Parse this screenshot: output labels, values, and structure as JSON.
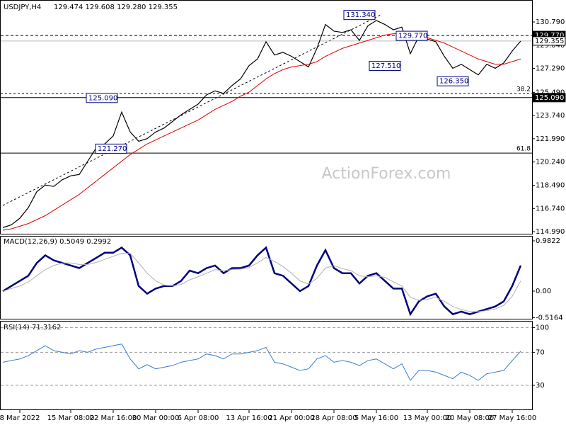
{
  "chart_data": [
    {
      "type": "line",
      "title": "USDJPY,H4",
      "subtitle": "129.474 129.608 129.280 129.355",
      "watermark": "ActionForex.com",
      "categories": [
        null,
        null,
        "8 Mar 2022",
        null,
        null,
        null,
        null,
        null,
        "15 Mar 08:00",
        null,
        null,
        null,
        null,
        "22 Mar 16:00",
        null,
        null,
        null,
        null,
        "30 Mar 00:00",
        null,
        null,
        null,
        null,
        "6 Apr 08:00",
        null,
        null,
        null,
        null,
        null,
        "13 Apr 16:00",
        null,
        null,
        null,
        null,
        "21 Apr 00:00",
        null,
        null,
        null,
        null,
        "28 Apr 08:00",
        null,
        null,
        null,
        null,
        "5 May 16:00",
        null,
        null,
        null,
        null,
        null,
        "13 May 00:00",
        null,
        null,
        null,
        null,
        "20 May 08:00",
        null,
        null,
        null,
        null,
        "27 May 16:00",
        null
      ],
      "series": [
        {
          "color": "#000000",
          "values": [
            115.3,
            115.5,
            116.0,
            116.8,
            118.0,
            118.5,
            118.4,
            118.9,
            119.2,
            119.3,
            120.3,
            121.3,
            121.6,
            122.2,
            124.0,
            122.5,
            121.8,
            122.0,
            122.5,
            122.8,
            123.3,
            123.8,
            124.2,
            124.6,
            125.3,
            125.6,
            125.4,
            126.0,
            126.5,
            127.5,
            128.0,
            129.3,
            128.3,
            128.5,
            128.2,
            127.8,
            127.4,
            128.8,
            130.6,
            130.1,
            130.0,
            130.2,
            129.4,
            130.5,
            130.9,
            130.6,
            130.2,
            130.4,
            128.4,
            129.7,
            129.5,
            129.3,
            128.2,
            127.3,
            127.6,
            127.2,
            126.8,
            127.6,
            127.3,
            127.7,
            128.6,
            129.35
          ]
        },
        {
          "color": "#e00000",
          "values": [
            115.1,
            115.2,
            115.4,
            115.6,
            115.9,
            116.2,
            116.6,
            117.0,
            117.4,
            117.8,
            118.3,
            118.8,
            119.3,
            119.8,
            120.3,
            120.8,
            121.2,
            121.6,
            121.9,
            122.2,
            122.5,
            122.8,
            123.1,
            123.4,
            123.8,
            124.2,
            124.5,
            124.8,
            125.2,
            125.5,
            126.0,
            126.5,
            126.9,
            127.2,
            127.4,
            127.5,
            127.6,
            127.8,
            128.2,
            128.5,
            128.8,
            129.0,
            129.2,
            129.4,
            129.6,
            129.8,
            129.9,
            129.9,
            129.8,
            129.7,
            129.6,
            129.4,
            129.2,
            128.9,
            128.6,
            128.3,
            128.0,
            127.8,
            127.6,
            127.6,
            127.8,
            128.0
          ]
        }
      ],
      "ylim": [
        114.78,
        132.39
      ],
      "yticks": [
        {
          "value": 114.99,
          "label": "114.990"
        },
        {
          "value": 116.74,
          "label": "116.740"
        },
        {
          "value": 118.49,
          "label": "118.490"
        },
        {
          "value": 120.24,
          "label": "120.240"
        },
        {
          "value": 121.99,
          "label": "121.990"
        },
        {
          "value": 123.74,
          "label": "123.740"
        },
        {
          "value": 125.49,
          "label": "125.490"
        },
        {
          "value": 127.29,
          "label": "127.290"
        },
        {
          "value": 129.04,
          "label": "129.040"
        },
        {
          "value": 130.79,
          "label": "130.790"
        }
      ],
      "price_tags": [
        {
          "value": 129.77,
          "label": "129.770",
          "style": "dashed"
        },
        {
          "value": 129.355,
          "label": "129.355",
          "style": "light"
        },
        {
          "value": 125.09,
          "label": "125.090",
          "style": "solid"
        }
      ],
      "levels": [
        {
          "value": 125.4,
          "label": "38.2",
          "style": "dashed"
        },
        {
          "value": 120.91,
          "label": "61.8",
          "style": "solid"
        }
      ],
      "annotations": [
        {
          "value": 131.34,
          "label": "131.340"
        },
        {
          "value": 129.77,
          "label": "129.770"
        },
        {
          "value": 127.51,
          "label": "127.510"
        },
        {
          "value": 126.35,
          "label": "126.350"
        },
        {
          "value": 125.09,
          "label": "125.090"
        },
        {
          "value": 121.27,
          "label": "121.270"
        }
      ]
    },
    {
      "type": "line",
      "title": "MACD(12,26,9) 0.5049 0.2992",
      "series": [
        {
          "color": "#00007f",
          "values": [
            0.0,
            0.1,
            0.2,
            0.3,
            0.55,
            0.7,
            0.6,
            0.55,
            0.5,
            0.45,
            0.55,
            0.65,
            0.75,
            0.75,
            0.85,
            0.7,
            0.1,
            -0.05,
            0.05,
            0.1,
            0.1,
            0.2,
            0.4,
            0.35,
            0.45,
            0.5,
            0.35,
            0.45,
            0.45,
            0.5,
            0.7,
            0.85,
            0.35,
            0.3,
            0.15,
            0.0,
            0.1,
            0.5,
            0.8,
            0.45,
            0.35,
            0.35,
            0.15,
            0.3,
            0.35,
            0.2,
            0.05,
            0.05,
            -0.45,
            -0.2,
            -0.1,
            -0.05,
            -0.3,
            -0.45,
            -0.4,
            -0.45,
            -0.4,
            -0.35,
            -0.3,
            -0.2,
            0.1,
            0.5
          ]
        },
        {
          "color": "#b0b0b0",
          "values": [
            0,
            0.05,
            0.1,
            0.18,
            0.3,
            0.42,
            0.5,
            0.55,
            0.55,
            0.52,
            0.52,
            0.56,
            0.62,
            0.68,
            0.74,
            0.74,
            0.55,
            0.35,
            0.2,
            0.12,
            0.1,
            0.13,
            0.22,
            0.28,
            0.35,
            0.42,
            0.4,
            0.42,
            0.43,
            0.46,
            0.55,
            0.66,
            0.58,
            0.48,
            0.35,
            0.2,
            0.14,
            0.25,
            0.45,
            0.5,
            0.44,
            0.4,
            0.3,
            0.28,
            0.3,
            0.27,
            0.18,
            0.1,
            -0.12,
            -0.18,
            -0.16,
            -0.12,
            -0.2,
            -0.3,
            -0.36,
            -0.4,
            -0.4,
            -0.38,
            -0.35,
            -0.28,
            -0.1,
            0.2
          ]
        }
      ],
      "ylim": [
        -0.553,
        1.065
      ],
      "yticks": [
        0.9822,
        {
          "value": 0,
          "label": "0.00"
        },
        -0.5164
      ]
    },
    {
      "type": "line",
      "title": "RSI(14) 71.3162",
      "grid": true,
      "series": [
        {
          "color": "#3a7bd5",
          "values": [
            58,
            60,
            62,
            66,
            72,
            78,
            72,
            70,
            68,
            72,
            70,
            74,
            76,
            78,
            80,
            62,
            50,
            55,
            50,
            52,
            54,
            58,
            60,
            62,
            68,
            66,
            62,
            68,
            68,
            70,
            72,
            76,
            58,
            56,
            52,
            48,
            50,
            62,
            66,
            58,
            60,
            58,
            54,
            60,
            62,
            56,
            50,
            56,
            36,
            48,
            48,
            46,
            42,
            38,
            46,
            42,
            36,
            44,
            46,
            48,
            60,
            71.3
          ]
        }
      ],
      "ylim": [
        0,
        107.2
      ],
      "yticks": [
        100,
        70,
        30
      ]
    }
  ]
}
